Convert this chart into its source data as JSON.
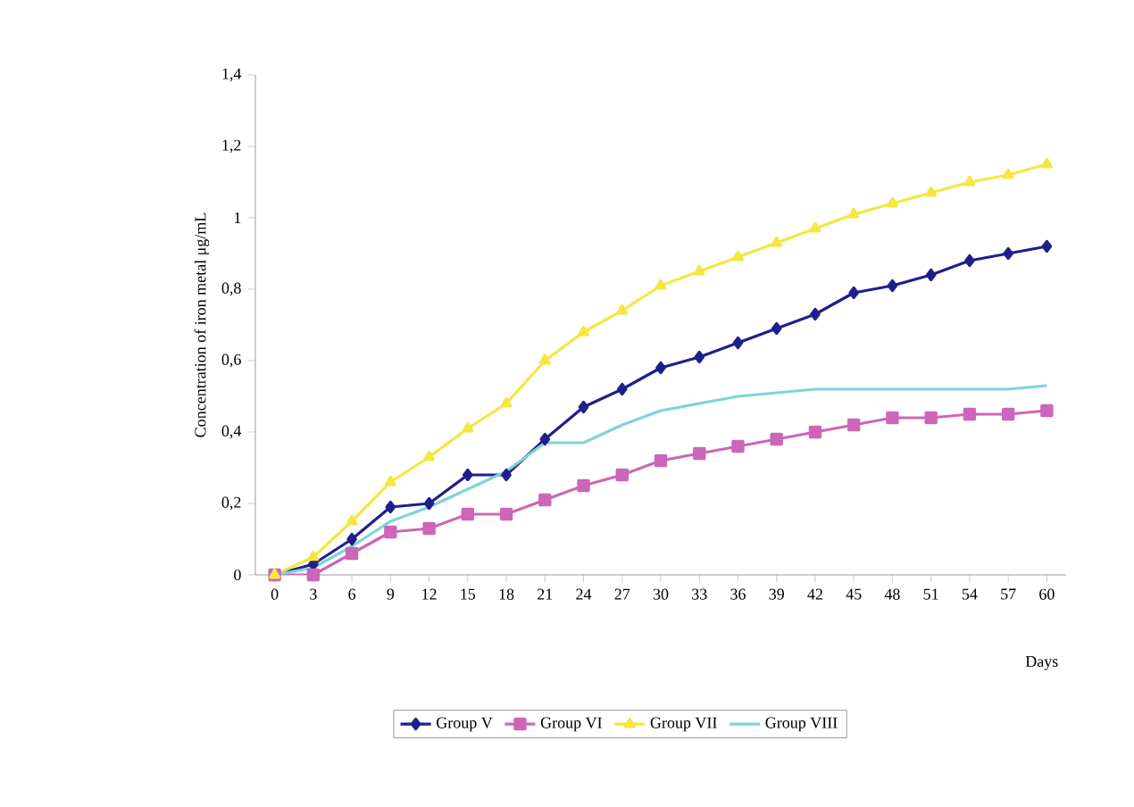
{
  "chart_data": {
    "type": "line",
    "xlabel": "Days",
    "ylabel": "Concentration of iron metal  μg/mL",
    "categories": [
      "0",
      "3",
      "6",
      "9",
      "12",
      "15",
      "18",
      "21",
      "24",
      "27",
      "30",
      "33",
      "36",
      "39",
      "42",
      "45",
      "48",
      "51",
      "54",
      "57",
      "60"
    ],
    "series": [
      {
        "name": "Group V",
        "color": "#1f1f8c",
        "marker": "diamond",
        "values": [
          0,
          0.03,
          0.1,
          0.19,
          0.2,
          0.28,
          0.28,
          0.38,
          0.47,
          0.52,
          0.58,
          0.61,
          0.65,
          0.69,
          0.73,
          0.79,
          0.81,
          0.84,
          0.88,
          0.9,
          0.92
        ]
      },
      {
        "name": "Group VI",
        "color": "#cc66b8",
        "marker": "square",
        "values": [
          0,
          0,
          0.06,
          0.12,
          0.13,
          0.17,
          0.17,
          0.21,
          0.25,
          0.28,
          0.32,
          0.34,
          0.36,
          0.38,
          0.4,
          0.42,
          0.44,
          0.44,
          0.45,
          0.45,
          0.46
        ]
      },
      {
        "name": "Group VII",
        "color": "#f5e642",
        "marker": "triangle",
        "values": [
          0,
          0.05,
          0.15,
          0.26,
          0.33,
          0.41,
          0.48,
          0.6,
          0.68,
          0.74,
          0.81,
          0.85,
          0.89,
          0.93,
          0.97,
          1.01,
          1.04,
          1.07,
          1.1,
          1.12,
          1.15
        ]
      },
      {
        "name": "Group VIII",
        "color": "#7fd4d4",
        "marker": "none",
        "values": [
          0,
          0.02,
          0.08,
          0.15,
          0.19,
          0.24,
          0.29,
          0.37,
          0.37,
          0.42,
          0.46,
          0.48,
          0.5,
          0.51,
          0.52,
          0.52,
          0.52,
          0.52,
          0.52,
          0.52,
          0.53
        ]
      }
    ],
    "ylim": [
      0,
      1.4
    ],
    "yticks": [
      0,
      {
        "value": 0.2,
        "label": "0,2"
      },
      {
        "value": 0.4,
        "label": "0,4"
      },
      {
        "value": 0.6,
        "label": "0,6"
      },
      {
        "value": 0.8,
        "label": "0,8"
      },
      1,
      {
        "value": 1.2,
        "label": "1,2"
      },
      {
        "value": 1.4,
        "label": "1,4"
      }
    ],
    "grid": false,
    "legend": "bottom",
    "line_style": "solid"
  }
}
